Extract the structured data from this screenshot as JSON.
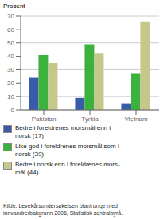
{
  "chart_data": {
    "type": "bar",
    "ylabel": "Prosent",
    "categories": [
      "Pakistan",
      "Tyrkia",
      "Vietnam"
    ],
    "series": [
      {
        "name": "Bedre i foreldrenes morsmål enn i\nnorsk (17)",
        "values": [
          24,
          9,
          5
        ],
        "color": "#3a5ca8"
      },
      {
        "name": "Like god i foreldrenes morsmål som i\nnorsk (39)",
        "values": [
          41,
          49,
          27
        ],
        "color": "#3db13d"
      },
      {
        "name": "Bedre i norsk enn i foreldrenes mors-\nmål (44)",
        "values": [
          35,
          42,
          66
        ],
        "color": "#c5c88a"
      }
    ],
    "ylim": [
      0,
      70
    ],
    "yticks": [
      0,
      10,
      20,
      30,
      40,
      50,
      60,
      70
    ],
    "grid": true,
    "legend": "bottom",
    "annotations": [
      "Kilde: Levekårsundersøkelsen blant unge med\ninnvandrerbakgrunn 2006, Statistisk sentralbyrå."
    ]
  }
}
